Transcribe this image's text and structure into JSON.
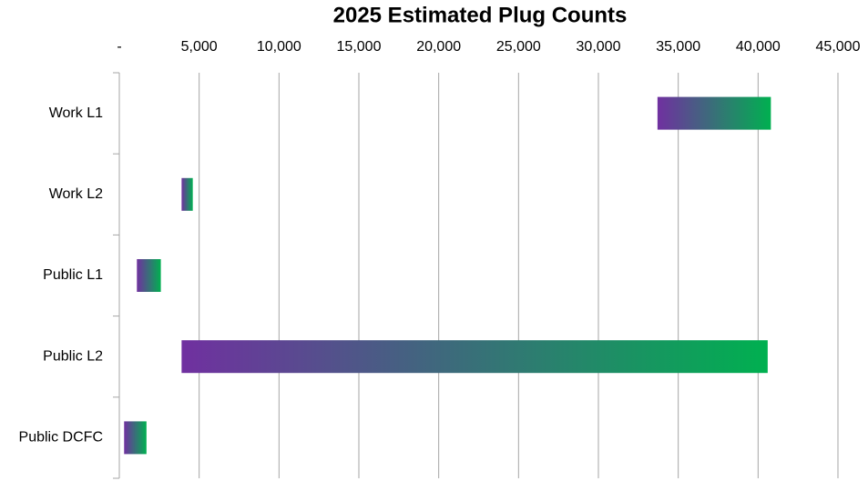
{
  "chart_data": {
    "type": "floating-bar",
    "title": "2025 Estimated Plug Counts",
    "categories": [
      "Work L1",
      "Work L2",
      "Public L1",
      "Public L2",
      "Public DCFC"
    ],
    "low": [
      33700,
      3900,
      1100,
      3900,
      300
    ],
    "high": [
      40800,
      4600,
      2600,
      40600,
      1700
    ],
    "gradient": [
      "#7030a0",
      "#00b050"
    ],
    "xlim": [
      0,
      45000
    ],
    "xticks": [
      {
        "value": 0,
        "label": "-"
      },
      {
        "value": 5000,
        "label": "5,000"
      },
      {
        "value": 10000,
        "label": "10,000"
      },
      {
        "value": 15000,
        "label": "15,000"
      },
      {
        "value": 20000,
        "label": "20,000"
      },
      {
        "value": 25000,
        "label": "25,000"
      },
      {
        "value": 30000,
        "label": "30,000"
      },
      {
        "value": 35000,
        "label": "35,000"
      },
      {
        "value": 40000,
        "label": "40,000"
      },
      {
        "value": 45000,
        "label": "45,000"
      }
    ],
    "grid": true
  }
}
